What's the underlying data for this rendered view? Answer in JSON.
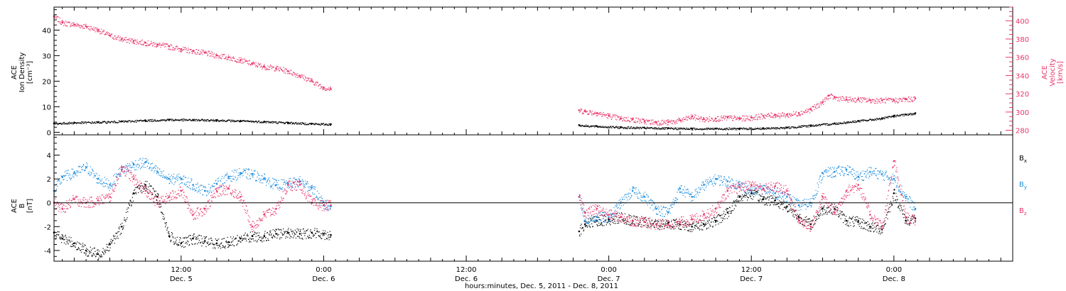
{
  "colors": {
    "black": "#000000",
    "red": "#e8366a",
    "blue": "#1e8ee0"
  },
  "chart_data": [
    {
      "type": "scatter",
      "panel": "top",
      "xlabel": "hours:minutes, Dec. 5, 2011 - Dec. 8, 2011",
      "xticks": [
        {
          "x": 12,
          "time": "12:00",
          "date": "Dec. 5"
        },
        {
          "x": 24,
          "time": "0:00",
          "date": "Dec. 6"
        },
        {
          "x": 36,
          "time": "12:00",
          "date": "Dec. 6"
        },
        {
          "x": 48,
          "time": "0:00",
          "date": "Dec. 7"
        },
        {
          "x": 60,
          "time": "12:00",
          "date": "Dec. 7"
        },
        {
          "x": 72,
          "time": "0:00",
          "date": "Dec. 8"
        }
      ],
      "xlim": [
        1.3,
        82.0
      ],
      "left_axis": {
        "label_lines": [
          "ACE",
          "Ion Density",
          "[cm⁻³]"
        ],
        "ylim": [
          -1,
          49
        ],
        "ticks": [
          0,
          10,
          20,
          30,
          40
        ]
      },
      "right_axis": {
        "label_lines": [
          "ACE",
          "Velocity",
          "[km/s]"
        ],
        "ylim": [
          275,
          415
        ],
        "ticks": [
          280,
          300,
          320,
          340,
          360,
          380,
          400
        ]
      },
      "series": [
        {
          "role": "velocity",
          "axis": "right",
          "color": "red",
          "x": [
            1.3,
            2,
            3,
            4,
            5,
            6,
            7,
            8,
            9,
            10,
            11,
            12,
            13,
            14,
            15,
            16,
            17,
            18,
            19,
            20,
            21,
            22,
            23,
            24,
            24.6,
            45.5,
            46,
            47,
            48,
            49,
            50,
            51,
            52,
            53,
            54,
            55,
            56,
            57,
            58,
            59,
            60,
            61,
            62,
            63,
            64,
            65,
            66,
            66.5,
            67,
            68,
            69,
            70,
            71,
            72,
            73,
            73.8
          ],
          "y": [
            405,
            398,
            396,
            394,
            390,
            384,
            380,
            378,
            376,
            374,
            372,
            369,
            367,
            365,
            362,
            360,
            357,
            353,
            350,
            348,
            345,
            340,
            334,
            327,
            325,
            302,
            301,
            299,
            296,
            293,
            292,
            290,
            289,
            289,
            291,
            295,
            292,
            293,
            294,
            293,
            294,
            296,
            297,
            297,
            299,
            303,
            311,
            318,
            316,
            314,
            314,
            313,
            313,
            313,
            314,
            315
          ]
        },
        {
          "role": "density",
          "axis": "left",
          "color": "black",
          "x": [
            1.3,
            3,
            5,
            7,
            9,
            11,
            13,
            15,
            17,
            19,
            21,
            23,
            24.6,
            45.5,
            47,
            49,
            51,
            53,
            55,
            57,
            59,
            61,
            63,
            65,
            67,
            69,
            71,
            72,
            73,
            73.8
          ],
          "y": [
            3.5,
            3.8,
            4.0,
            4.3,
            4.7,
            5.0,
            4.9,
            4.8,
            4.5,
            4.2,
            3.8,
            3.4,
            3.2,
            2.8,
            2.4,
            2.0,
            1.8,
            1.6,
            1.5,
            1.5,
            1.5,
            1.6,
            1.9,
            2.7,
            3.5,
            4.5,
            5.5,
            6.5,
            7.0,
            7.5
          ]
        }
      ]
    },
    {
      "type": "scatter",
      "panel": "bottom",
      "left_axis": {
        "label_lines": [
          "ACE",
          "B",
          "[nT]"
        ],
        "ylim": [
          -4.9,
          5.7
        ],
        "ticks": [
          -4,
          -2,
          0,
          2,
          4
        ]
      },
      "legend": {
        "placement": "right",
        "entries": [
          {
            "base": "B",
            "sub": "x",
            "color": "black"
          },
          {
            "base": "B",
            "sub": "y",
            "color": "blue"
          },
          {
            "base": "B",
            "sub": "z",
            "color": "red"
          }
        ]
      },
      "series": [
        {
          "name": "Bx",
          "color": "black",
          "x": [
            1.3,
            2,
            3,
            4,
            5,
            6,
            7,
            8,
            9,
            10,
            11,
            12,
            13,
            14,
            15,
            16,
            17,
            18,
            19,
            20,
            21,
            22,
            23,
            24,
            24.6,
            45.5,
            46,
            47,
            48,
            49,
            50,
            51,
            52,
            53,
            54,
            55,
            56,
            57,
            58,
            59,
            60,
            61,
            62,
            63,
            64,
            65,
            66,
            67,
            68,
            69,
            70,
            71,
            72,
            73,
            73.8
          ],
          "y": [
            -2.5,
            -3.0,
            -3.4,
            -4.0,
            -4.3,
            -3.5,
            -2.0,
            0.8,
            1.5,
            0.5,
            -2.8,
            -3.4,
            -3.0,
            -3.2,
            -3.4,
            -3.3,
            -3.0,
            -2.8,
            -2.8,
            -2.6,
            -2.5,
            -2.6,
            -2.5,
            -2.6,
            -2.7,
            -2.4,
            -1.8,
            -1.5,
            -1.4,
            -1.2,
            -1.5,
            -1.6,
            -1.8,
            -1.7,
            -1.8,
            -2.0,
            -1.8,
            -1.5,
            -0.8,
            0.5,
            0.8,
            0.3,
            0.2,
            -0.3,
            -1.2,
            -1.8,
            -0.5,
            -0.5,
            -1.5,
            -1.6,
            -2.0,
            -2.2,
            0.8,
            -1.5,
            -1.3
          ]
        },
        {
          "name": "By",
          "color": "blue",
          "x": [
            1.3,
            2,
            3,
            4,
            5,
            6,
            7,
            8,
            9,
            10,
            11,
            12,
            13,
            14,
            15,
            16,
            17,
            18,
            19,
            20,
            21,
            22,
            23,
            24,
            24.6,
            45.5,
            46,
            47,
            48,
            49,
            50,
            51,
            52,
            53,
            54,
            55,
            56,
            57,
            58,
            59,
            60,
            61,
            62,
            63,
            64,
            65,
            66,
            67,
            68,
            69,
            70,
            71,
            72,
            73,
            73.8
          ],
          "y": [
            1.0,
            2.2,
            2.5,
            3.0,
            2.0,
            1.5,
            2.8,
            3.2,
            3.4,
            2.6,
            2.0,
            2.0,
            1.5,
            1.0,
            1.6,
            2.2,
            2.5,
            2.4,
            2.0,
            1.5,
            1.6,
            1.8,
            1.3,
            -0.2,
            -0.3,
            0.5,
            -1.5,
            -1.2,
            -1.2,
            0.0,
            1.0,
            0.5,
            -0.5,
            -0.8,
            1.2,
            0.5,
            1.5,
            2.0,
            1.8,
            1.5,
            1.0,
            1.2,
            0.8,
            0.5,
            -0.2,
            0.0,
            2.5,
            2.6,
            2.8,
            2.2,
            2.6,
            2.4,
            2.0,
            0.5,
            -0.5
          ]
        },
        {
          "name": "Bz",
          "color": "red",
          "x": [
            1.3,
            2,
            3,
            4,
            5,
            6,
            7,
            8,
            9,
            10,
            11,
            12,
            13,
            14,
            15,
            16,
            17,
            18,
            19,
            20,
            21,
            22,
            23,
            24,
            24.6,
            45.5,
            46,
            47,
            48,
            49,
            50,
            51,
            52,
            53,
            54,
            55,
            56,
            57,
            58,
            59,
            60,
            61,
            62,
            63,
            64,
            65,
            66,
            67,
            68,
            69,
            70,
            71,
            72,
            73,
            73.8
          ],
          "y": [
            0.0,
            -0.5,
            0.3,
            0.0,
            0.2,
            0.5,
            3.0,
            2.0,
            1.0,
            0.0,
            0.5,
            1.0,
            -1.0,
            -0.5,
            1.0,
            1.2,
            0.5,
            -2.0,
            -1.0,
            -0.5,
            1.5,
            1.5,
            0.0,
            -0.2,
            -0.2,
            0.5,
            -0.8,
            -0.5,
            -1.0,
            -1.2,
            -1.5,
            -1.6,
            -1.8,
            -1.8,
            -1.6,
            -1.4,
            -1.0,
            -0.5,
            1.0,
            1.3,
            1.5,
            1.2,
            1.4,
            1.0,
            -1.5,
            -2.0,
            0.5,
            -0.8,
            1.0,
            1.5,
            -1.0,
            -2.0,
            3.5,
            -1.2,
            -1.5
          ]
        }
      ]
    }
  ]
}
